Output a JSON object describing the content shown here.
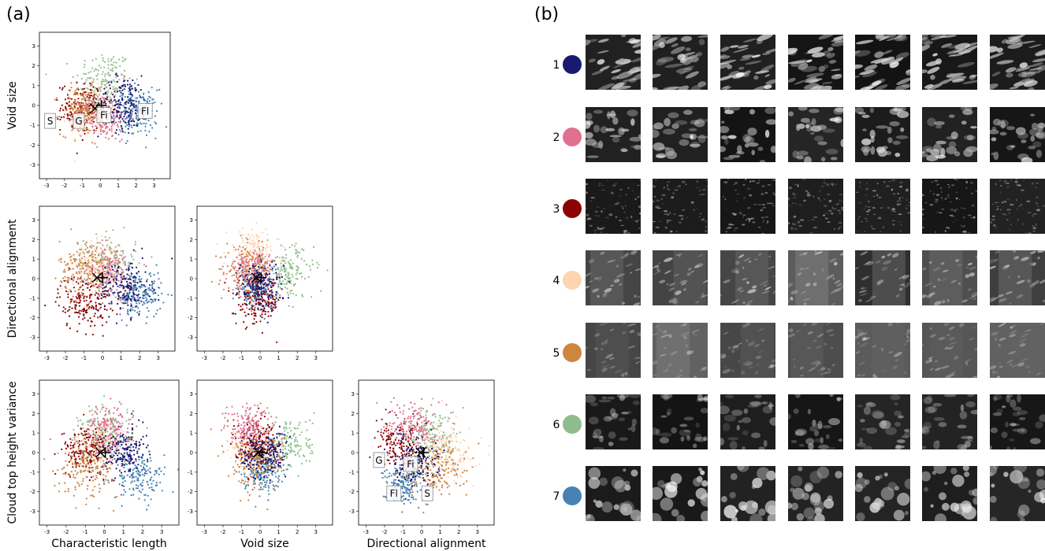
{
  "panel_labels": {
    "a": "(a)",
    "b": "(b)"
  },
  "cluster_colors": [
    "#191970",
    "#e0708f",
    "#8b0000",
    "#fdd5b1",
    "#cd853f",
    "#8fbc8f",
    "#4682b4"
  ],
  "chart_data": [
    {
      "type": "scatter",
      "id": "void-vs-charlen",
      "xlabel": "",
      "ylabel": "Void size",
      "xlim": [
        -3.4,
        3.9
      ],
      "ylim": [
        -3.7,
        3.7
      ],
      "xticks": [
        -3,
        -2,
        -1,
        0,
        1,
        2,
        3
      ],
      "yticks": [
        -3,
        -2,
        -1,
        0,
        1,
        2,
        3
      ],
      "markers": [
        {
          "symbol": "x",
          "x": -0.3,
          "y": -0.15
        },
        {
          "symbol": "+",
          "x": 0.05,
          "y": 0.0
        }
      ],
      "annotations": [
        {
          "text": "S",
          "x": -2.8,
          "y": -0.8
        },
        {
          "text": "G",
          "x": -1.2,
          "y": -0.8
        },
        {
          "text": "Fi",
          "x": 0.2,
          "y": -0.5
        },
        {
          "text": "Fl",
          "x": 2.5,
          "y": -0.3
        }
      ],
      "clusters": [
        {
          "id": 1,
          "mean": [
            1.3,
            0.1
          ],
          "sd": [
            0.7,
            0.7
          ]
        },
        {
          "id": 2,
          "mean": [
            0.2,
            -0.6
          ],
          "sd": [
            0.7,
            0.6
          ]
        },
        {
          "id": 3,
          "mean": [
            -1.0,
            -0.1
          ],
          "sd": [
            0.6,
            0.6
          ]
        },
        {
          "id": 4,
          "mean": [
            -0.5,
            -0.3
          ],
          "sd": [
            0.6,
            0.6
          ]
        },
        {
          "id": 5,
          "mean": [
            -1.0,
            -0.3
          ],
          "sd": [
            0.6,
            0.6
          ]
        },
        {
          "id": 6,
          "mean": [
            0.2,
            1.2
          ],
          "sd": [
            0.8,
            0.8
          ]
        },
        {
          "id": 7,
          "mean": [
            2.0,
            -0.4
          ],
          "sd": [
            0.6,
            0.6
          ]
        }
      ]
    },
    {
      "type": "scatter",
      "id": "dir-vs-charlen",
      "xlabel": "",
      "ylabel": "Directional alignment",
      "xlim": [
        -3.4,
        3.9
      ],
      "ylim": [
        -3.7,
        3.7
      ],
      "xticks": [
        -3,
        -2,
        -1,
        0,
        1,
        2,
        3
      ],
      "yticks": [
        -3,
        -2,
        -1,
        0,
        1,
        2,
        3
      ],
      "markers": [
        {
          "symbol": "x",
          "x": -0.3,
          "y": 0.05
        },
        {
          "symbol": "+",
          "x": 0.0,
          "y": 0.05
        }
      ],
      "annotations": [],
      "clusters": [
        {
          "id": 1,
          "mean": [
            1.2,
            -0.5
          ],
          "sd": [
            0.7,
            0.7
          ]
        },
        {
          "id": 2,
          "mean": [
            0.3,
            0.3
          ],
          "sd": [
            0.7,
            0.7
          ]
        },
        {
          "id": 3,
          "mean": [
            -1.0,
            -1.2
          ],
          "sd": [
            0.7,
            0.7
          ]
        },
        {
          "id": 4,
          "mean": [
            -0.4,
            0.6
          ],
          "sd": [
            0.6,
            0.6
          ]
        },
        {
          "id": 5,
          "mean": [
            -0.9,
            0.6
          ],
          "sd": [
            0.7,
            0.7
          ]
        },
        {
          "id": 6,
          "mean": [
            0.4,
            0.8
          ],
          "sd": [
            0.7,
            0.7
          ]
        },
        {
          "id": 7,
          "mean": [
            2.0,
            -0.8
          ],
          "sd": [
            0.6,
            0.6
          ]
        }
      ]
    },
    {
      "type": "scatter",
      "id": "dir-vs-void",
      "xlabel": "",
      "ylabel": "",
      "xlim": [
        -3.4,
        3.9
      ],
      "ylim": [
        -3.7,
        3.7
      ],
      "xticks": [
        -3,
        -2,
        -1,
        0,
        1,
        2,
        3
      ],
      "yticks": [
        -3,
        -2,
        -1,
        0,
        1,
        2,
        3
      ],
      "markers": [
        {
          "symbol": "x",
          "x": -0.2,
          "y": 0.05
        },
        {
          "symbol": "+",
          "x": 0.05,
          "y": 0.05
        }
      ],
      "annotations": [],
      "clusters": [
        {
          "id": 1,
          "mean": [
            0.0,
            -0.3
          ],
          "sd": [
            0.6,
            0.6
          ]
        },
        {
          "id": 2,
          "mean": [
            -0.5,
            0.4
          ],
          "sd": [
            0.6,
            0.6
          ]
        },
        {
          "id": 3,
          "mean": [
            -0.1,
            -1.2
          ],
          "sd": [
            0.6,
            0.6
          ]
        },
        {
          "id": 4,
          "mean": [
            -0.4,
            1.3
          ],
          "sd": [
            0.7,
            0.6
          ]
        },
        {
          "id": 5,
          "mean": [
            -0.6,
            0.4
          ],
          "sd": [
            0.6,
            0.6
          ]
        },
        {
          "id": 6,
          "mean": [
            1.5,
            0.3
          ],
          "sd": [
            0.7,
            0.7
          ]
        },
        {
          "id": 7,
          "mean": [
            -0.2,
            -0.5
          ],
          "sd": [
            0.5,
            0.5
          ]
        }
      ]
    },
    {
      "type": "scatter",
      "id": "cth-vs-charlen",
      "xlabel": "Characteristic length",
      "ylabel": "Cloud top height variance",
      "xlim": [
        -3.4,
        3.9
      ],
      "ylim": [
        -3.7,
        3.7
      ],
      "xticks": [
        -3,
        -2,
        -1,
        0,
        1,
        2,
        3
      ],
      "yticks": [
        -3,
        -2,
        -1,
        0,
        1,
        2,
        3
      ],
      "markers": [
        {
          "symbol": "x",
          "x": -0.2,
          "y": 0.0
        },
        {
          "symbol": "+",
          "x": 0.05,
          "y": 0.0
        }
      ],
      "annotations": [],
      "clusters": [
        {
          "id": 1,
          "mean": [
            1.0,
            0.0
          ],
          "sd": [
            0.6,
            0.6
          ]
        },
        {
          "id": 2,
          "mean": [
            0.2,
            1.2
          ],
          "sd": [
            0.6,
            0.6
          ]
        },
        {
          "id": 3,
          "mean": [
            -1.0,
            0.1
          ],
          "sd": [
            0.6,
            0.6
          ]
        },
        {
          "id": 4,
          "mean": [
            -0.2,
            0.3
          ],
          "sd": [
            0.6,
            0.6
          ]
        },
        {
          "id": 5,
          "mean": [
            -0.8,
            -0.6
          ],
          "sd": [
            0.8,
            0.8
          ]
        },
        {
          "id": 6,
          "mean": [
            0.1,
            1.0
          ],
          "sd": [
            0.7,
            0.7
          ]
        },
        {
          "id": 7,
          "mean": [
            1.8,
            -1.2
          ],
          "sd": [
            0.7,
            0.6
          ]
        }
      ]
    },
    {
      "type": "scatter",
      "id": "cth-vs-void",
      "xlabel": "Void size",
      "ylabel": "",
      "xlim": [
        -3.4,
        3.9
      ],
      "ylim": [
        -3.7,
        3.7
      ],
      "xticks": [
        -3,
        -2,
        -1,
        0,
        1,
        2,
        3
      ],
      "yticks": [
        -3,
        -2,
        -1,
        0,
        1,
        2,
        3
      ],
      "markers": [
        {
          "symbol": "x",
          "x": -0.1,
          "y": 0.0
        },
        {
          "symbol": "+",
          "x": 0.1,
          "y": 0.0
        }
      ],
      "annotations": [],
      "clusters": [
        {
          "id": 1,
          "mean": [
            0.2,
            -0.1
          ],
          "sd": [
            0.6,
            0.6
          ]
        },
        {
          "id": 2,
          "mean": [
            -0.6,
            1.3
          ],
          "sd": [
            0.7,
            0.6
          ]
        },
        {
          "id": 3,
          "mean": [
            -0.2,
            0.5
          ],
          "sd": [
            0.6,
            0.6
          ]
        },
        {
          "id": 4,
          "mean": [
            -0.3,
            0.1
          ],
          "sd": [
            0.6,
            0.6
          ]
        },
        {
          "id": 5,
          "mean": [
            -0.3,
            -0.5
          ],
          "sd": [
            0.7,
            0.7
          ]
        },
        {
          "id": 6,
          "mean": [
            1.5,
            0.5
          ],
          "sd": [
            0.7,
            0.7
          ]
        },
        {
          "id": 7,
          "mean": [
            0.1,
            -1.0
          ],
          "sd": [
            0.5,
            0.5
          ]
        }
      ]
    },
    {
      "type": "scatter",
      "id": "cth-vs-dir",
      "xlabel": "Directional alignment",
      "ylabel": "",
      "xlim": [
        -3.4,
        3.9
      ],
      "ylim": [
        -3.7,
        3.7
      ],
      "xticks": [
        -3,
        -2,
        -1,
        0,
        1,
        2,
        3
      ],
      "yticks": [
        -3,
        -2,
        -1,
        0,
        1,
        2,
        3
      ],
      "markers": [
        {
          "symbol": "x",
          "x": -0.05,
          "y": 0.0
        },
        {
          "symbol": "+",
          "x": 0.1,
          "y": 0.0
        }
      ],
      "annotations": [
        {
          "text": "G",
          "x": -2.3,
          "y": -0.4
        },
        {
          "text": "Fi",
          "x": -0.6,
          "y": -0.6
        },
        {
          "text": "Fl",
          "x": -1.5,
          "y": -2.1
        },
        {
          "text": "S",
          "x": 0.3,
          "y": -2.1
        }
      ],
      "clusters": [
        {
          "id": 1,
          "mean": [
            -0.3,
            -0.4
          ],
          "sd": [
            0.6,
            0.6
          ]
        },
        {
          "id": 2,
          "mean": [
            -0.5,
            1.4
          ],
          "sd": [
            0.7,
            0.6
          ]
        },
        {
          "id": 3,
          "mean": [
            -1.2,
            0.3
          ],
          "sd": [
            0.6,
            0.6
          ]
        },
        {
          "id": 4,
          "mean": [
            1.4,
            0.0
          ],
          "sd": [
            0.7,
            0.7
          ]
        },
        {
          "id": 5,
          "mean": [
            0.8,
            -0.9
          ],
          "sd": [
            0.8,
            0.7
          ]
        },
        {
          "id": 6,
          "mean": [
            0.6,
            0.8
          ],
          "sd": [
            0.7,
            0.7
          ]
        },
        {
          "id": 7,
          "mean": [
            -1.0,
            -1.6
          ],
          "sd": [
            0.5,
            0.5
          ]
        }
      ]
    }
  ],
  "image_grid": {
    "rows": [
      {
        "label": "1",
        "brightness": 0.55,
        "pattern": "streaks"
      },
      {
        "label": "2",
        "brightness": 0.5,
        "pattern": "patches"
      },
      {
        "label": "3",
        "brightness": 0.35,
        "pattern": "fine"
      },
      {
        "label": "4",
        "brightness": 0.5,
        "pattern": "haze"
      },
      {
        "label": "5",
        "brightness": 0.35,
        "pattern": "haze"
      },
      {
        "label": "6",
        "brightness": 0.3,
        "pattern": "patches"
      },
      {
        "label": "7",
        "brightness": 0.5,
        "pattern": "blobs"
      }
    ],
    "columns": 7
  }
}
